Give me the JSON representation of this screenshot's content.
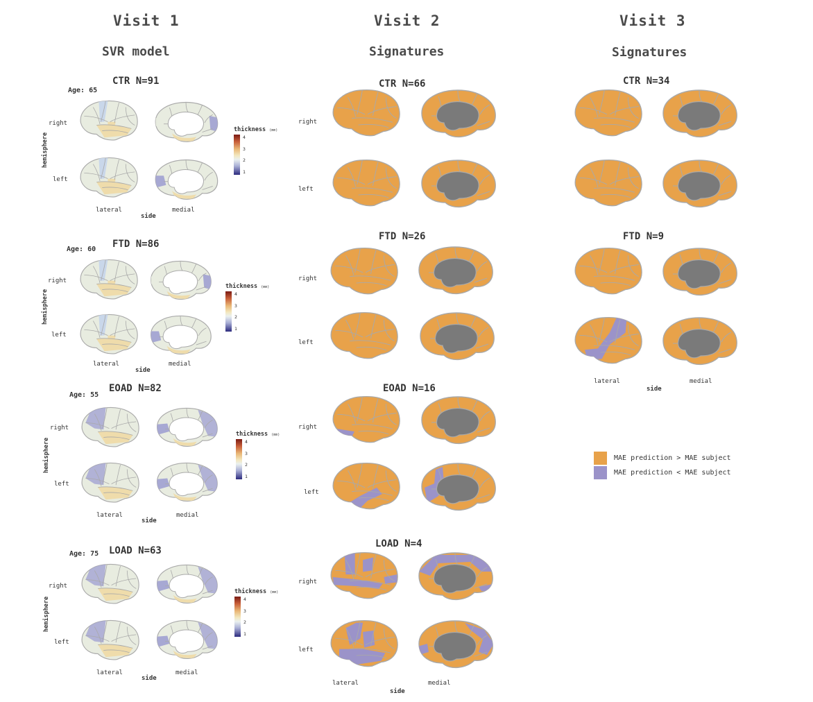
{
  "visits": [
    {
      "title": "Visit 1",
      "subtitle": "SVR model"
    },
    {
      "title": "Visit 2",
      "subtitle": "Signatures"
    },
    {
      "title": "Visit 3",
      "subtitle": "Signatures"
    }
  ],
  "labels": {
    "right": "right",
    "left": "left",
    "lateral": "lateral",
    "medial": "medial",
    "side": "side",
    "hemisphere": "hemisphere"
  },
  "colorbar": {
    "title": "thickness",
    "unit": "(mm)",
    "ticks": [
      "4",
      "3",
      "2",
      "1"
    ]
  },
  "svr_panels": [
    {
      "title": "CTR N=91",
      "age": "Age: 65"
    },
    {
      "title": "FTD N=86",
      "age": "Age: 60"
    },
    {
      "title": "EOAD N=82",
      "age": "Age: 55"
    },
    {
      "title": "LOAD N=63",
      "age": "Age: 75"
    }
  ],
  "visit2_panels": [
    {
      "title": "CTR N=66"
    },
    {
      "title": "FTD N=26"
    },
    {
      "title": "EOAD N=16"
    },
    {
      "title": "LOAD N=4"
    }
  ],
  "visit3_panels": [
    {
      "title": "CTR N=34"
    },
    {
      "title": "FTD N=9"
    }
  ],
  "legend": {
    "items": [
      {
        "label": "MAE prediction > MAE subject",
        "color": "#e8a24a"
      },
      {
        "label": "MAE prediction < MAE subject",
        "color": "#9b93c9"
      }
    ]
  },
  "colors": {
    "orange": "#e8a24a",
    "purple": "#9b93c9",
    "gray": "#7a7a7a",
    "outline": "#b7b7b7"
  }
}
